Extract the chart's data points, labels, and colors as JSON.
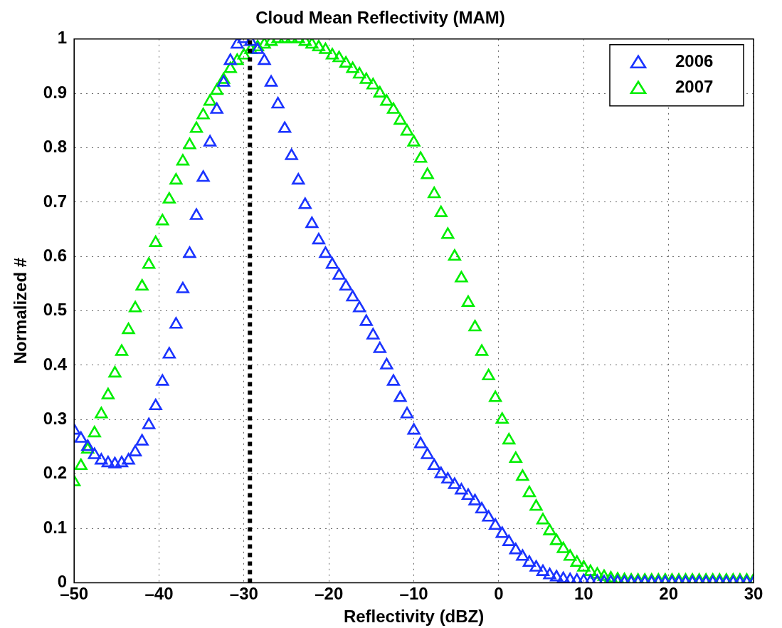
{
  "chart_data": {
    "type": "scatter",
    "title": "Cloud Mean Reflectivity (MAM)",
    "xlabel": "Reflectivity (dBZ)",
    "ylabel": "Normalized #",
    "x": [
      -50,
      -49.2,
      -48.4,
      -47.6,
      -46.8,
      -46,
      -45.2,
      -44.4,
      -43.6,
      -42.8,
      -42,
      -41.2,
      -40.4,
      -39.6,
      -38.8,
      -38,
      -37.2,
      -36.4,
      -35.6,
      -34.8,
      -34,
      -33.2,
      -32.4,
      -31.6,
      -30.8,
      -30,
      -29.2,
      -28.4,
      -27.6,
      -26.8,
      -26,
      -25.2,
      -24.4,
      -23.6,
      -22.8,
      -22,
      -21.2,
      -20.4,
      -19.6,
      -18.8,
      -18,
      -17.2,
      -16.4,
      -15.6,
      -14.8,
      -14,
      -13.2,
      -12.4,
      -11.6,
      -10.8,
      -10,
      -9.2,
      -8.4,
      -7.6,
      -6.8,
      -6,
      -5.2,
      -4.4,
      -3.6,
      -2.8,
      -2,
      -1.2,
      -0.4,
      0.4,
      1.2,
      2,
      2.8,
      3.6,
      4.4,
      5.2,
      6,
      6.8,
      7.6,
      8.4,
      9.2,
      10,
      10.8,
      11.6,
      12.4,
      13.2,
      14,
      14.8,
      15.6,
      16.4,
      17.2,
      18,
      18.8,
      19.6,
      20.4,
      21.2,
      22,
      22.8,
      23.6,
      24.4,
      25.2,
      26,
      26.8,
      27.6,
      28.4,
      29.2,
      30
    ],
    "series": [
      {
        "name": "2006",
        "color": "#1a33ff",
        "values": [
          0.28,
          0.265,
          0.25,
          0.235,
          0.225,
          0.22,
          0.218,
          0.22,
          0.225,
          0.24,
          0.26,
          0.29,
          0.325,
          0.37,
          0.42,
          0.475,
          0.54,
          0.605,
          0.675,
          0.745,
          0.81,
          0.87,
          0.92,
          0.96,
          0.99,
          1.0,
          0.995,
          0.98,
          0.96,
          0.92,
          0.88,
          0.835,
          0.785,
          0.74,
          0.695,
          0.66,
          0.63,
          0.605,
          0.585,
          0.565,
          0.545,
          0.525,
          0.505,
          0.48,
          0.455,
          0.43,
          0.4,
          0.37,
          0.34,
          0.31,
          0.28,
          0.255,
          0.235,
          0.215,
          0.2,
          0.19,
          0.18,
          0.17,
          0.16,
          0.15,
          0.135,
          0.12,
          0.105,
          0.09,
          0.075,
          0.06,
          0.048,
          0.037,
          0.028,
          0.02,
          0.014,
          0.01,
          0.007,
          0.005,
          0.004,
          0.003,
          0.002,
          0.002,
          0.001,
          0.001,
          0.001,
          0,
          0,
          0,
          0,
          0,
          0,
          0,
          0,
          0,
          0,
          0,
          0,
          0,
          0,
          0,
          0,
          0,
          0,
          0,
          0
        ]
      },
      {
        "name": "2007",
        "color": "#00ee00",
        "values": [
          0.185,
          0.215,
          0.245,
          0.275,
          0.31,
          0.345,
          0.385,
          0.425,
          0.465,
          0.505,
          0.545,
          0.585,
          0.625,
          0.665,
          0.705,
          0.74,
          0.775,
          0.805,
          0.835,
          0.86,
          0.885,
          0.905,
          0.925,
          0.945,
          0.96,
          0.97,
          0.98,
          0.985,
          0.99,
          0.995,
          1.0,
          1.0,
          1.0,
          1.0,
          0.995,
          0.99,
          0.985,
          0.98,
          0.97,
          0.965,
          0.955,
          0.945,
          0.935,
          0.925,
          0.915,
          0.9,
          0.885,
          0.87,
          0.85,
          0.83,
          0.81,
          0.78,
          0.75,
          0.715,
          0.68,
          0.64,
          0.6,
          0.56,
          0.515,
          0.47,
          0.425,
          0.38,
          0.34,
          0.3,
          0.262,
          0.228,
          0.195,
          0.165,
          0.14,
          0.115,
          0.095,
          0.077,
          0.062,
          0.048,
          0.037,
          0.028,
          0.02,
          0.015,
          0.011,
          0.008,
          0.006,
          0.005,
          0.004,
          0.004,
          0.004,
          0.004,
          0.004,
          0.004,
          0.004,
          0.004,
          0.004,
          0.004,
          0.004,
          0.004,
          0.004,
          0.004,
          0.004,
          0.004,
          0.004,
          0.004,
          0.004
        ]
      }
    ],
    "xlim": [
      -50,
      30
    ],
    "xticks": [
      {
        "value": -50,
        "label": "–50"
      },
      {
        "value": -40,
        "label": "–40"
      },
      {
        "value": -30,
        "label": "–30"
      },
      {
        "value": -20,
        "label": "–20"
      },
      {
        "value": -10,
        "label": "–10"
      },
      0,
      10,
      20,
      30
    ],
    "ylim": [
      0,
      1
    ],
    "yticks": [
      0,
      0.1,
      0.2,
      0.3,
      0.4,
      0.5,
      0.6,
      0.7,
      0.8,
      0.9,
      1
    ],
    "ref_lines": [
      {
        "axis": "x",
        "value": -29.3,
        "color": "#000000",
        "line_style": "dotted"
      }
    ],
    "grid": true,
    "legend": "top right",
    "marker": "triangle"
  }
}
